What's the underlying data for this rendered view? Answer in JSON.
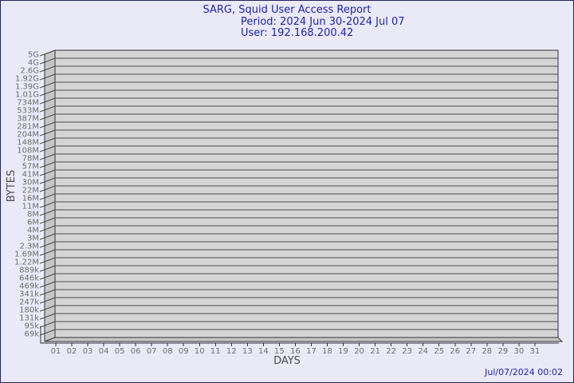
{
  "chart_data": {
    "type": "bar",
    "title": "SARG, Squid User Access Report",
    "subtitle_period": "Period: 2024 Jun 30-2024 Jul 07",
    "subtitle_user": "User: 192.168.200.42",
    "xlabel": "DAYS",
    "ylabel": "BYTES",
    "x_tick_labels": [
      "01",
      "02",
      "03",
      "04",
      "05",
      "06",
      "07",
      "08",
      "09",
      "10",
      "11",
      "12",
      "13",
      "14",
      "15",
      "16",
      "17",
      "18",
      "19",
      "20",
      "21",
      "22",
      "23",
      "24",
      "25",
      "26",
      "27",
      "28",
      "29",
      "30",
      "31"
    ],
    "y_tick_labels": [
      "5G",
      "4G",
      "2.6G",
      "1.92G",
      "1.39G",
      "1.01G",
      "734M",
      "533M",
      "387M",
      "281M",
      "204M",
      "148M",
      "108M",
      "78M",
      "57M",
      "41M",
      "30M",
      "22M",
      "16M",
      "11M",
      "8M",
      "6M",
      "4M",
      "3M",
      "2.3M",
      "1.69M",
      "1.22M",
      "889k",
      "646k",
      "469k",
      "341k",
      "247k",
      "180k",
      "131k",
      "95k",
      "69k"
    ],
    "values": [],
    "yscale": "log",
    "grid": true,
    "legend": "none",
    "footer_timestamp": "Jul/07/2024 00:02",
    "colors": {
      "accent_text": "#2324a4",
      "background": "#e9e9f8",
      "plot_fill": "#d5d5d5",
      "wall_fill": "#c7c7c7",
      "grid_line": "#4d4d4d",
      "border_line": "#333333",
      "tick_label": "#6f6f6f",
      "axis_title": "#4d4d4d"
    }
  }
}
